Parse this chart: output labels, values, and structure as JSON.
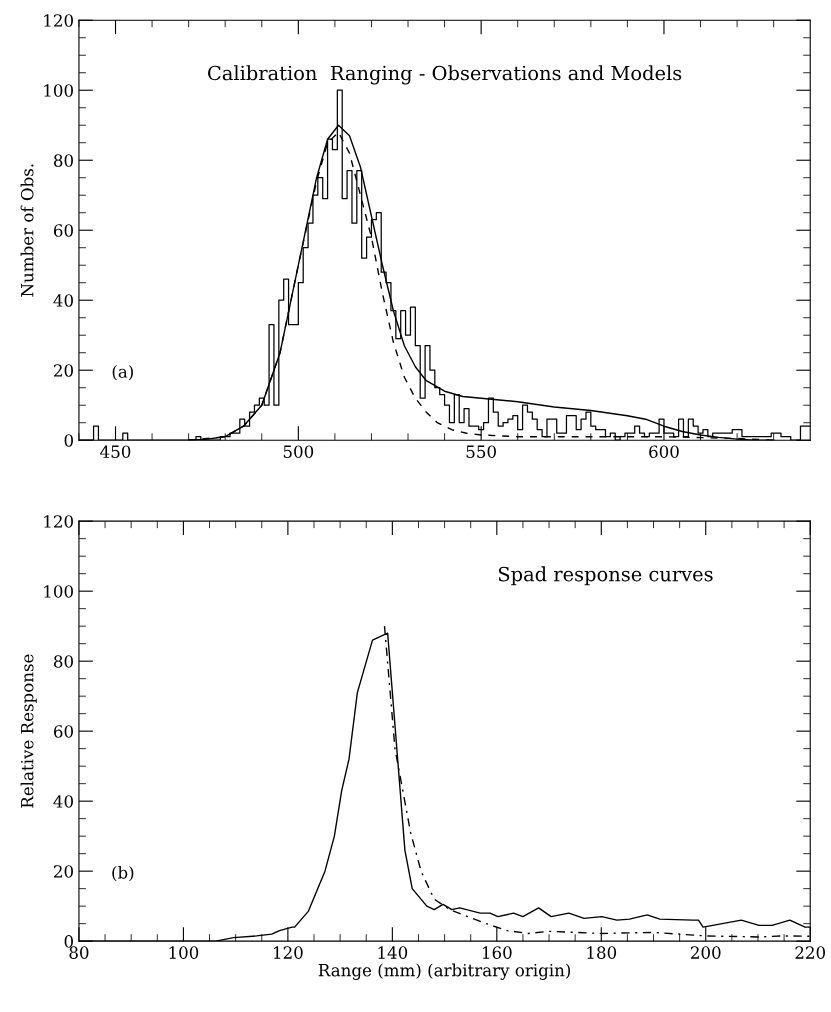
{
  "chart_data": [
    {
      "type": "line",
      "title": "Calibration  Ranging - Observations and Models",
      "ylabel": "Number of Obs.",
      "annotations": [
        "(a)"
      ],
      "xlim": [
        440,
        640
      ],
      "ylim": [
        0,
        120
      ],
      "xticks": [
        {
          "value": 440,
          "label": null
        },
        450,
        {
          "value": 460,
          "label": null
        },
        {
          "value": 470,
          "label": null
        },
        {
          "value": 480,
          "label": null
        },
        {
          "value": 490,
          "label": null
        },
        500,
        {
          "value": 510,
          "label": null
        },
        {
          "value": 520,
          "label": null
        },
        {
          "value": 530,
          "label": null
        },
        {
          "value": 540,
          "label": null
        },
        550,
        {
          "value": 560,
          "label": null
        },
        {
          "value": 570,
          "label": null
        },
        {
          "value": 580,
          "label": null
        },
        {
          "value": 590,
          "label": null
        },
        600,
        {
          "value": 610,
          "label": null
        },
        {
          "value": 620,
          "label": null
        },
        {
          "value": 630,
          "label": null
        }
      ],
      "yticks": [
        0,
        {
          "value": 5,
          "label": null
        },
        {
          "value": 10,
          "label": null
        },
        {
          "value": 15,
          "label": null
        },
        20,
        {
          "value": 25,
          "label": null
        },
        {
          "value": 30,
          "label": null
        },
        {
          "value": 35,
          "label": null
        },
        40,
        {
          "value": 45,
          "label": null
        },
        {
          "value": 50,
          "label": null
        },
        {
          "value": 55,
          "label": null
        },
        60,
        {
          "value": 65,
          "label": null
        },
        {
          "value": 70,
          "label": null
        },
        {
          "value": 75,
          "label": null
        },
        80,
        {
          "value": 85,
          "label": null
        },
        {
          "value": 90,
          "label": null
        },
        {
          "value": 95,
          "label": null
        },
        100,
        {
          "value": 105,
          "label": null
        },
        {
          "value": 110,
          "label": null
        },
        {
          "value": 115,
          "label": null
        },
        120
      ],
      "series": [
        {
          "type": "step",
          "color": "#000000",
          "line_style": "solid",
          "x": [
            440,
            441.33,
            442.67,
            444,
            445.33,
            446.67,
            448,
            449.33,
            450.67,
            452,
            453.33,
            454.67,
            456,
            457.33,
            458.67,
            460,
            461.33,
            462.67,
            464,
            465.33,
            466.67,
            468,
            469.33,
            470.67,
            472,
            473.33,
            474.67,
            476,
            477.33,
            478.67,
            480,
            481.33,
            482.67,
            484,
            485.33,
            486.67,
            488,
            489.33,
            490.67,
            492,
            493.33,
            494.67,
            496,
            497.33,
            498.67,
            500,
            501.33,
            502.67,
            504,
            505.33,
            506.67,
            508,
            509.33,
            510.67,
            512,
            513.33,
            514.67,
            516,
            517.33,
            518.67,
            520,
            521.33,
            522.67,
            524,
            525.33,
            526.67,
            528,
            529.33,
            530.67,
            532,
            533.33,
            534.67,
            536,
            537.33,
            538.67,
            540,
            541.33,
            542.67,
            544,
            545.33,
            546.67,
            548,
            549.33,
            550.67,
            552,
            553.33,
            554.67,
            556,
            557.33,
            558.67,
            560,
            561.33,
            562.67,
            564,
            565.33,
            566.67,
            568,
            569.33,
            570.67,
            572,
            573.33,
            574.67,
            576,
            577.33,
            578.67,
            580,
            581.33,
            582.67,
            584,
            585.33,
            586.67,
            588,
            589.33,
            590.67,
            592,
            593.33,
            594.67,
            596,
            597.33,
            598.67,
            600,
            601.33,
            602.67,
            604,
            605.33,
            606.67,
            608,
            609.33,
            610.67,
            612,
            613.33,
            614.67,
            616,
            617.33,
            618.67,
            620,
            621.33,
            622.67,
            624,
            625.33,
            626.67,
            628,
            629.33,
            630.67,
            632,
            633.33,
            634.67,
            636,
            637.33,
            638.67,
            640
          ],
          "values": [
            0,
            0,
            0,
            4,
            0,
            0,
            0,
            0,
            0,
            2,
            0,
            0,
            0,
            0,
            0,
            0,
            0,
            0,
            0,
            0,
            0,
            0,
            0,
            0,
            1,
            0,
            0,
            0,
            0,
            1,
            1,
            2,
            2,
            6,
            4,
            8,
            10,
            12,
            10,
            33,
            10,
            40,
            46,
            33,
            33,
            45,
            55,
            62,
            70,
            75,
            69,
            86,
            83,
            100,
            69,
            77,
            62,
            77,
            52,
            58,
            63,
            65,
            48,
            45,
            37,
            29,
            37,
            30,
            38,
            27,
            12,
            27,
            20,
            15,
            13,
            10,
            5,
            13,
            5,
            9,
            4,
            4,
            3,
            5,
            12,
            8,
            4,
            5,
            6,
            7,
            3,
            10,
            8,
            6,
            3,
            1,
            6,
            6,
            2,
            2,
            7,
            7,
            3,
            6,
            8,
            4,
            3,
            3,
            1,
            2,
            0,
            1,
            2,
            2,
            4,
            2,
            1,
            2,
            2,
            6,
            2,
            2,
            1,
            6,
            1,
            6,
            4,
            2,
            3,
            1,
            2,
            2,
            2,
            2,
            3,
            3,
            1,
            1,
            1,
            1,
            1,
            1,
            2,
            2,
            1,
            1,
            0,
            0,
            4,
            4,
            4
          ]
        },
        {
          "type": "line",
          "color": "#000000",
          "line_style": "solid",
          "x": [
            470,
            475,
            480,
            485,
            490,
            495,
            500,
            505,
            508,
            511,
            514,
            517,
            520,
            523,
            526,
            529,
            532,
            535,
            540,
            545,
            550,
            560,
            570,
            580,
            590,
            595,
            600,
            605,
            610,
            615,
            620,
            625,
            630
          ],
          "values": [
            0,
            0.3,
            1,
            4,
            10,
            25,
            50,
            75,
            86,
            90,
            87,
            78,
            64,
            50,
            37,
            27,
            21,
            17,
            14,
            12.5,
            12,
            11,
            9.5,
            8.5,
            7,
            6,
            4,
            2.5,
            1.5,
            0.8,
            0.3,
            0,
            0
          ]
        },
        {
          "type": "line",
          "color": "#000000",
          "line_style": "dashed",
          "x": [
            470,
            480,
            485,
            490,
            495,
            500,
            505,
            508,
            511,
            514,
            517,
            520,
            523,
            526,
            529,
            532,
            535,
            538,
            542,
            546,
            550,
            560,
            580,
            600,
            620,
            630
          ],
          "values": [
            0,
            1,
            4,
            10,
            25,
            50,
            74,
            85,
            88,
            82,
            70,
            58,
            42,
            28,
            18,
            12,
            8,
            5,
            3,
            2,
            1.5,
            1,
            1,
            1,
            0.5,
            0
          ]
        }
      ]
    },
    {
      "type": "line",
      "title": "Spad response curves",
      "xlabel": "Range (mm) (arbitrary origin)",
      "ylabel": "Relative Response",
      "annotations": [
        "(b)"
      ],
      "xlim": [
        80,
        220
      ],
      "ylim": [
        0,
        120
      ],
      "xticks": [
        80,
        {
          "value": 85,
          "label": null
        },
        {
          "value": 90,
          "label": null
        },
        {
          "value": 95,
          "label": null
        },
        100,
        {
          "value": 105,
          "label": null
        },
        {
          "value": 110,
          "label": null
        },
        {
          "value": 115,
          "label": null
        },
        120,
        {
          "value": 125,
          "label": null
        },
        {
          "value": 130,
          "label": null
        },
        {
          "value": 135,
          "label": null
        },
        140,
        {
          "value": 145,
          "label": null
        },
        {
          "value": 150,
          "label": null
        },
        {
          "value": 155,
          "label": null
        },
        160,
        {
          "value": 165,
          "label": null
        },
        {
          "value": 170,
          "label": null
        },
        {
          "value": 175,
          "label": null
        },
        180,
        {
          "value": 185,
          "label": null
        },
        {
          "value": 190,
          "label": null
        },
        {
          "value": 195,
          "label": null
        },
        200,
        {
          "value": 205,
          "label": null
        },
        {
          "value": 210,
          "label": null
        },
        {
          "value": 215,
          "label": null
        },
        220
      ],
      "yticks": [
        0,
        {
          "value": 5,
          "label": null
        },
        {
          "value": 10,
          "label": null
        },
        {
          "value": 15,
          "label": null
        },
        20,
        {
          "value": 25,
          "label": null
        },
        {
          "value": 30,
          "label": null
        },
        {
          "value": 35,
          "label": null
        },
        40,
        {
          "value": 45,
          "label": null
        },
        {
          "value": 50,
          "label": null
        },
        {
          "value": 55,
          "label": null
        },
        60,
        {
          "value": 65,
          "label": null
        },
        {
          "value": 70,
          "label": null
        },
        {
          "value": 75,
          "label": null
        },
        80,
        {
          "value": 85,
          "label": null
        },
        {
          "value": 90,
          "label": null
        },
        {
          "value": 95,
          "label": null
        },
        100,
        {
          "value": 105,
          "label": null
        },
        {
          "value": 110,
          "label": null
        },
        {
          "value": 115,
          "label": null
        },
        120
      ],
      "series": [
        {
          "color": "#000000",
          "line_style": "solid",
          "x": [
            80,
            106.2,
            109.6,
            114,
            116.9,
            118.4,
            120.8,
            121.3,
            123.9,
            127.1,
            128.9,
            130.3,
            131.7,
            133.3,
            136.2,
            139.1,
            142.4,
            143.8,
            146.6,
            148,
            149.7,
            151.4,
            152.9,
            156.8,
            158.7,
            160.2,
            163.2,
            165,
            168,
            170.4,
            173.8,
            176.7,
            180.1,
            183,
            185.4,
            188.8,
            191.2,
            197.5,
            198.6,
            199.5,
            206.8,
            210.2,
            212.7,
            216.1,
            219,
            220
          ],
          "values": [
            0,
            0,
            1,
            1.5,
            2,
            3,
            4,
            4,
            8.5,
            20,
            30,
            43,
            52,
            71,
            86,
            88,
            26,
            15,
            10,
            9,
            10.5,
            9,
            9.5,
            8,
            8,
            7,
            8,
            7,
            9.5,
            7,
            8,
            6.5,
            7,
            6,
            6.3,
            7.5,
            6.3,
            6,
            6,
            4,
            6,
            4.5,
            4.5,
            6,
            4,
            4
          ]
        },
        {
          "color": "#000000",
          "line_style": "dashdot",
          "x": [
            138.5,
            140.5,
            142,
            143.5,
            145.5,
            148,
            151,
            154.5,
            158,
            162,
            166,
            170,
            180,
            190,
            200,
            210,
            215,
            220
          ],
          "values": [
            90,
            55,
            43,
            31,
            20,
            12,
            9,
            7,
            5,
            3,
            2.2,
            2.8,
            2.2,
            2.5,
            1.5,
            1.2,
            1.5,
            1.4
          ]
        }
      ]
    }
  ]
}
